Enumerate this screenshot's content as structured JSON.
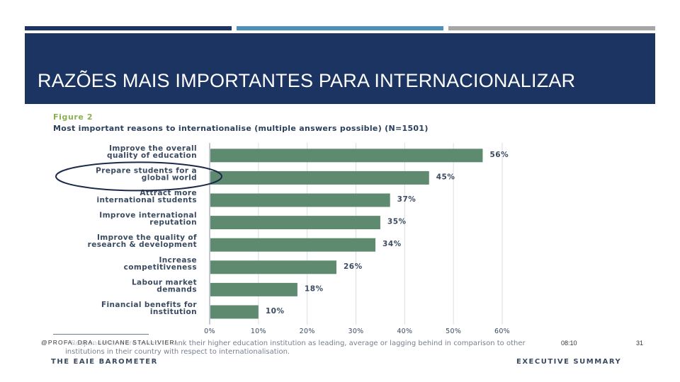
{
  "slide": {
    "title": "RAZÕES MAIS IMPORTANTES PARA INTERNACIONALIZAR",
    "credit": "@PROFA. DRA. LUCIANE STALLIVIERI",
    "time": "08:10",
    "page_number": "31"
  },
  "figure": {
    "label": "Figure 2",
    "title": "Most important reasons to internationalise (multiple answers possible) (N=1501)",
    "footnote": "* Respondents were asked to rank their higher education institution as leading, average or lagging behind in comparison to other institutions in their country with respect to internationalisation.",
    "footer_left": "THE EAIE BAROMETER",
    "footer_right": "EXECUTIVE SUMMARY"
  },
  "chart_data": {
    "type": "bar",
    "orientation": "horizontal",
    "title": "Most important reasons to internationalise (multiple answers possible) (N=1501)",
    "categories": [
      [
        "Improve the overall",
        "quality of education"
      ],
      [
        "Prepare students for a",
        "global world"
      ],
      [
        "Attract more",
        "international students"
      ],
      [
        "Improve international",
        "reputation"
      ],
      [
        "Improve the quality of",
        "research & development"
      ],
      [
        "Increase",
        "competitiveness"
      ],
      [
        "Labour market",
        "demands"
      ],
      [
        "Financial benefits for",
        "institution"
      ]
    ],
    "values": [
      56,
      45,
      37,
      35,
      34,
      26,
      18,
      10
    ],
    "value_labels": [
      "56%",
      "45%",
      "37%",
      "35%",
      "34%",
      "26%",
      "18%",
      "10%"
    ],
    "xlim": [
      0,
      60
    ],
    "x_ticks": [
      "0%",
      "10%",
      "20%",
      "30%",
      "40%",
      "50%",
      "60%"
    ],
    "bar_color": "#5e8a70",
    "grid": true,
    "highlight": {
      "category_index": 1,
      "shape": "ellipse",
      "color": "#1c2a4a"
    }
  }
}
